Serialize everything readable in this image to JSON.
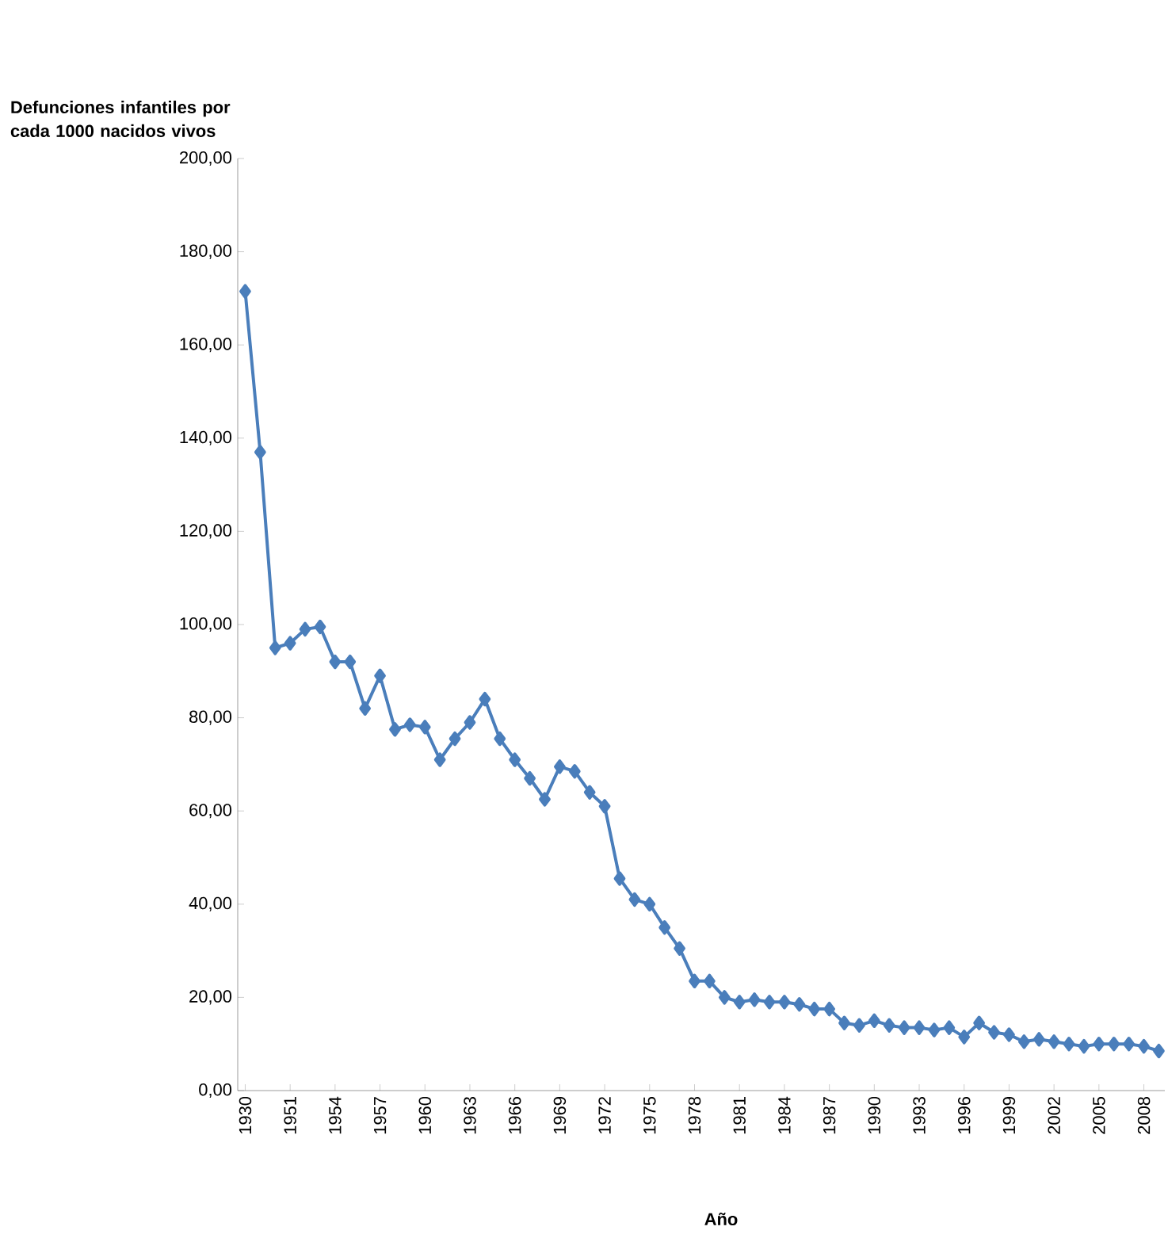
{
  "chart_data": {
    "type": "line",
    "ylabel": "Defunciones infantiles por cada 1000 nacidos vivos",
    "xlabel": "Año",
    "categories": [
      "1930",
      null,
      null,
      "1951",
      null,
      null,
      "1954",
      null,
      null,
      "1957",
      null,
      null,
      "1960",
      null,
      null,
      "1963",
      null,
      null,
      "1966",
      null,
      null,
      "1969",
      null,
      null,
      "1972",
      null,
      null,
      "1975",
      null,
      null,
      "1978",
      null,
      null,
      "1981",
      null,
      null,
      "1984",
      null,
      null,
      "1987",
      null,
      null,
      "1990",
      null,
      null,
      "1993",
      null,
      null,
      "1996",
      null,
      null,
      "1999",
      null,
      null,
      "2002",
      null,
      null,
      "2005",
      null,
      null,
      "2008",
      null
    ],
    "series": [
      {
        "color": "#4a7ebb",
        "values": [
          171.5,
          137,
          95,
          96,
          99,
          99.5,
          92,
          92,
          82,
          89,
          77.5,
          78.5,
          78,
          71,
          75.5,
          79,
          84,
          75.5,
          71,
          67,
          62.5,
          69.5,
          68.5,
          64,
          61,
          45.5,
          41,
          40,
          35,
          30.5,
          23.5,
          23.5,
          20,
          19,
          19.5,
          19,
          19,
          18.5,
          17.5,
          17.5,
          14.5,
          14,
          15,
          14,
          13.5,
          13.5,
          13,
          13.5,
          11.5,
          14.5,
          12.5,
          12,
          10.5,
          11,
          10.5,
          10,
          9.5,
          10,
          10,
          10,
          9.5,
          8.5
        ]
      }
    ],
    "ylim": [
      0,
      200
    ],
    "yticks": [
      {
        "value": 0,
        "label": "0,00"
      },
      {
        "value": 20,
        "label": "20,00"
      },
      {
        "value": 40,
        "label": "40,00"
      },
      {
        "value": 60,
        "label": "60,00"
      },
      {
        "value": 80,
        "label": "80,00"
      },
      {
        "value": 100,
        "label": "100,00"
      },
      {
        "value": 120,
        "label": "120,00"
      },
      {
        "value": 140,
        "label": "140,00"
      },
      {
        "value": 160,
        "label": "160,00"
      },
      {
        "value": 180,
        "label": "180,00"
      },
      {
        "value": 200,
        "label": "200,00"
      }
    ],
    "grid": false,
    "marker": "diamond",
    "line_style": "solid"
  }
}
